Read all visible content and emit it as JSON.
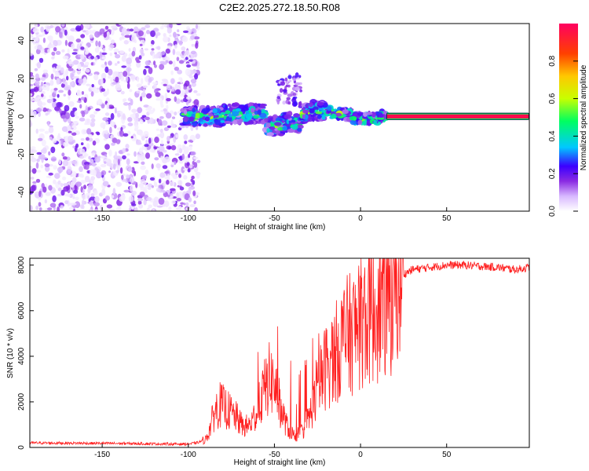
{
  "title": "C2E2.2025.272.18.50.R08",
  "chart_data": [
    {
      "type": "heatmap",
      "name": "spectrogram",
      "xlabel": "Height of straight line (km)",
      "ylabel": "Frequency (Hz)",
      "xlim": [
        -192,
        98
      ],
      "ylim": [
        -50,
        49
      ],
      "xticks": [
        -150,
        -100,
        -50,
        0,
        50
      ],
      "yticks": [
        -40,
        -20,
        0,
        20,
        40
      ],
      "colorbar": {
        "label": "Normalized spectral amplitude",
        "range": [
          0.0,
          1.0
        ],
        "ticks": [
          0.0,
          0.2,
          0.4,
          0.6,
          0.8
        ],
        "tick_labels": [
          "0.0",
          "0.2",
          "0.4",
          "0.6",
          "0.8"
        ],
        "colors": [
          "#ffffff",
          "#d8b8ff",
          "#8a2be2",
          "#3b00ff",
          "#00c8ff",
          "#00ff60",
          "#c8ff00",
          "#ffc800",
          "#ff4000",
          "#ff0060"
        ]
      },
      "regions": [
        {
          "name": "noise",
          "x_range": [
            -192,
            -100
          ],
          "y_range": [
            -50,
            49
          ],
          "amplitude": [
            0.02,
            0.2
          ]
        },
        {
          "name": "band",
          "x_range": [
            -103,
            15
          ],
          "center_hz": 0,
          "width_hz": 6,
          "amplitude": [
            0.1,
            0.65
          ]
        },
        {
          "name": "steady-line",
          "x_range": [
            15,
            98
          ],
          "center_hz": 0,
          "width_hz": 3,
          "amplitude": [
            0.92,
            0.97
          ]
        }
      ]
    },
    {
      "type": "line",
      "name": "snr",
      "xlabel": "Height of straight line (km)",
      "ylabel": "SNR (10 * v/v)",
      "xlim": [
        -192,
        98
      ],
      "ylim": [
        0,
        8300
      ],
      "xticks": [
        -150,
        -100,
        -50,
        0,
        50
      ],
      "yticks": [
        0,
        2000,
        4000,
        6000,
        8000
      ],
      "color": "#ff2020",
      "x": [
        -192,
        -170,
        -150,
        -130,
        -110,
        -100,
        -95,
        -90,
        -88,
        -85,
        -82,
        -78,
        -75,
        -72,
        -68,
        -64,
        -60,
        -56,
        -53,
        -50,
        -48,
        -45,
        -42,
        -38,
        -34,
        -30,
        -27,
        -24,
        -22,
        -20,
        -17,
        -14,
        -11,
        -8,
        -5,
        -2,
        1,
        4,
        7,
        10,
        13,
        16,
        20,
        25,
        30,
        40,
        50,
        60,
        70,
        80,
        90,
        98
      ],
      "y": [
        200,
        190,
        180,
        170,
        150,
        150,
        200,
        350,
        700,
        1500,
        1900,
        1700,
        1500,
        1300,
        900,
        1000,
        1600,
        2500,
        3000,
        2800,
        2200,
        1400,
        800,
        500,
        700,
        1300,
        2000,
        2800,
        3200,
        3600,
        3800,
        4200,
        4600,
        4900,
        5000,
        5300,
        5600,
        5800,
        6000,
        6100,
        6300,
        6700,
        7200,
        7600,
        7800,
        7900,
        8000,
        8000,
        7950,
        7900,
        7800,
        7900
      ]
    }
  ]
}
